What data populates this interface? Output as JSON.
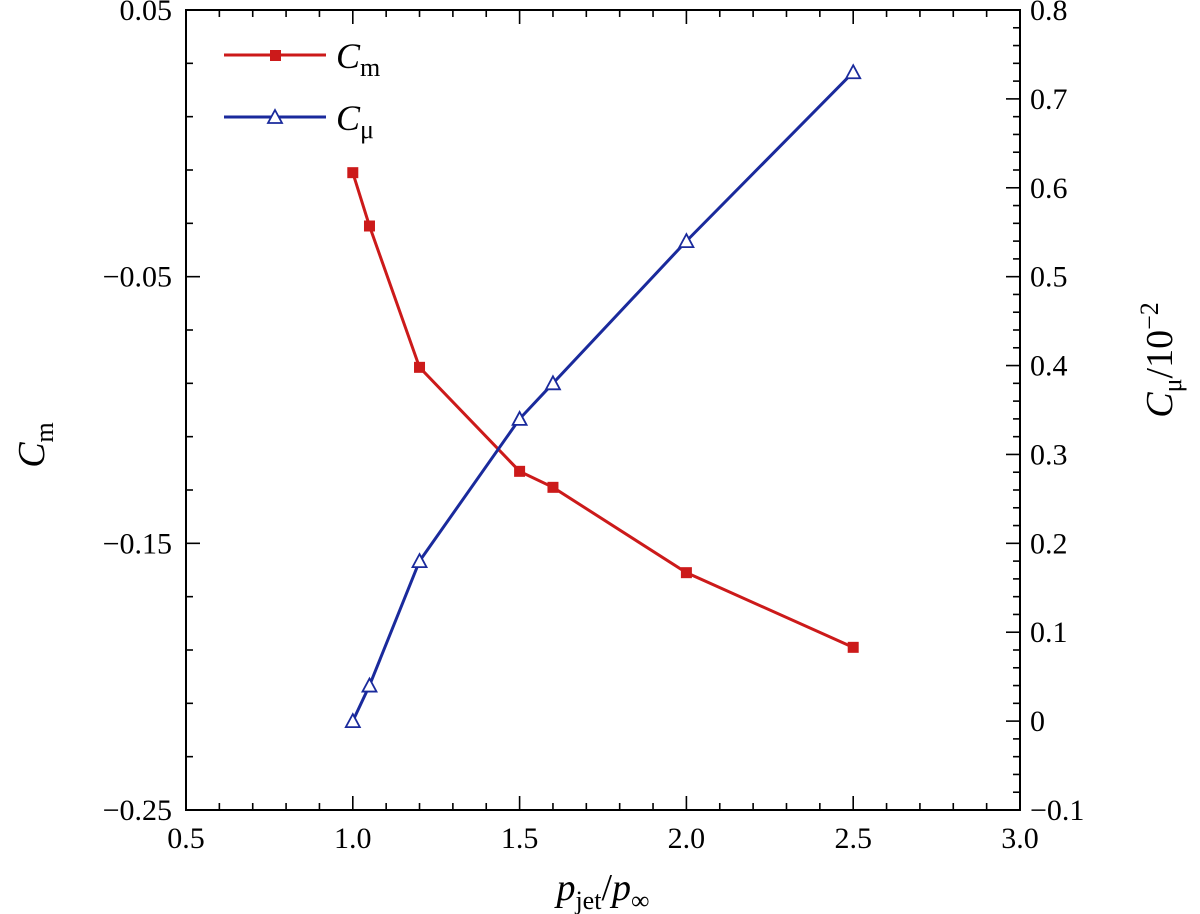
{
  "chart_data": {
    "type": "line",
    "title": "",
    "x": [
      1.0,
      1.05,
      1.2,
      1.5,
      1.6,
      2.0,
      2.5
    ],
    "xlim": [
      0.5,
      3.0
    ],
    "xticks": [
      "0.5",
      "1.0",
      "1.5",
      "2.0",
      "2.5",
      "3.0"
    ],
    "xlabel": {
      "p1": "p",
      "sub1": "jet",
      "slash": "/",
      "p2": "p",
      "sub2": "∞"
    },
    "y_left": {
      "label": {
        "main": "C",
        "sub": "m"
      },
      "lim": [
        -0.25,
        0.05
      ],
      "ticks": [
        "0.05",
        "−0.05",
        "−0.15",
        "−0.25"
      ]
    },
    "y_right": {
      "label": {
        "main": "C",
        "sub": "μ",
        "slash": "/",
        "base": "10",
        "exp": "−2"
      },
      "lim": [
        -0.1,
        0.8
      ],
      "ticks": [
        "−0.1",
        "0",
        "0.1",
        "0.2",
        "0.3",
        "0.4",
        "0.5",
        "0.6",
        "0.7",
        "0.8"
      ]
    },
    "series": [
      {
        "name": "Cm",
        "legend_main": "C",
        "legend_sub": "m",
        "axis": "left",
        "color": "#cc1a1a",
        "marker": "filled-square",
        "values": [
          -0.011,
          -0.031,
          -0.084,
          -0.123,
          -0.129,
          -0.161,
          -0.189
        ]
      },
      {
        "name": "Cμ",
        "legend_main": "C",
        "legend_sub": "μ",
        "axis": "right",
        "color": "#1a2a9c",
        "marker": "open-triangle",
        "values": [
          0.0,
          0.04,
          0.18,
          0.34,
          0.38,
          0.54,
          0.73
        ]
      }
    ],
    "legend_position": "top-left",
    "grid": false
  }
}
